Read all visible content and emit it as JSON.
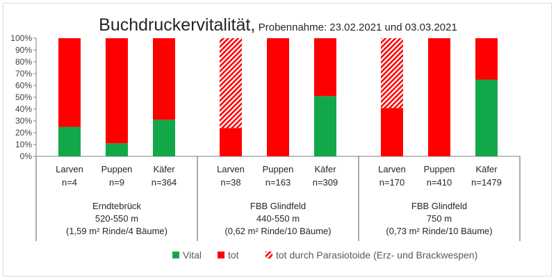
{
  "chart_data": {
    "type": "bar",
    "stacked": true,
    "title": "Buchdruckervitalität,",
    "subtitle": "Probennahme: 23.02.2021 und 03.03.2021",
    "ylim": [
      0,
      100
    ],
    "y_ticks": [
      "0%",
      "10%",
      "20%",
      "30%",
      "40%",
      "50%",
      "60%",
      "70%",
      "80%",
      "90%",
      "100%"
    ],
    "grid": false,
    "legend_position": "bottom",
    "series": [
      {
        "name": "Vital",
        "color": "#12a84a",
        "values": [
          25,
          11,
          31,
          0,
          0,
          51,
          0,
          0,
          65
        ]
      },
      {
        "name": "tot",
        "color": "#ff0000",
        "values": [
          75,
          89,
          69,
          24,
          100,
          49,
          41,
          100,
          35
        ]
      },
      {
        "name": "tot durch Parasiotoide (Erz- und Brackwespen)",
        "color": "#ff0000",
        "pattern": "hatched",
        "values": [
          0,
          0,
          0,
          76,
          0,
          0,
          59,
          0,
          0
        ]
      }
    ],
    "groups": [
      {
        "lines": [
          "Erndtebrück",
          "520-550 m",
          "(1,59 m² Rinde/4 Bäume)"
        ],
        "categories": [
          {
            "label": "Larven",
            "n": "n=4"
          },
          {
            "label": "Puppen",
            "n": "n=9"
          },
          {
            "label": "Käfer",
            "n": "n=364"
          }
        ]
      },
      {
        "lines": [
          "FBB Glindfeld",
          "440-550 m",
          "(0,62 m² Rinde/10 Bäume)"
        ],
        "categories": [
          {
            "label": "Larven",
            "n": "n=38"
          },
          {
            "label": "Puppen",
            "n": "n=163"
          },
          {
            "label": "Käfer",
            "n": "n=309"
          }
        ]
      },
      {
        "lines": [
          "FBB Glindfeld",
          "750 m",
          "(0,73 m² Rinde/10 Bäume)"
        ],
        "categories": [
          {
            "label": "Larven",
            "n": "n=170"
          },
          {
            "label": "Puppen",
            "n": "n=410"
          },
          {
            "label": "Käfer",
            "n": "n=1479"
          }
        ]
      }
    ]
  }
}
